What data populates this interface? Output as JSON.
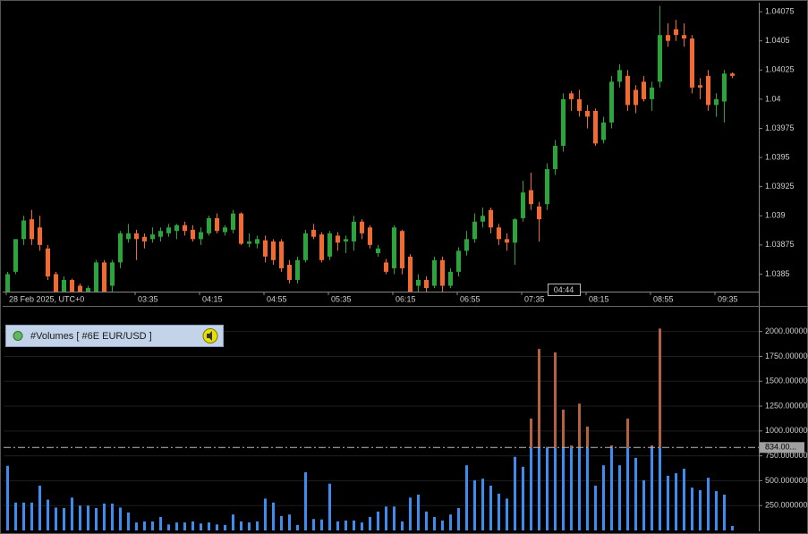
{
  "chart_data": [
    {
      "type": "candlestick",
      "categories": [
        "28 Feb 2025, UTC+0",
        null,
        null,
        null,
        null,
        null,
        null,
        null,
        null,
        null,
        null,
        null,
        null,
        null,
        null,
        null,
        "03:35",
        null,
        null,
        null,
        null,
        null,
        null,
        null,
        "04:15",
        null,
        null,
        null,
        null,
        null,
        null,
        null,
        "04:55",
        null,
        null,
        null,
        null,
        null,
        null,
        null,
        "05:35",
        null,
        null,
        null,
        null,
        null,
        null,
        null,
        "06:15",
        null,
        null,
        null,
        null,
        null,
        null,
        null,
        "06:55",
        null,
        null,
        null,
        null,
        null,
        null,
        null,
        "07:35",
        null,
        null,
        null,
        null,
        null,
        null,
        null,
        "08:15",
        null,
        null,
        null,
        null,
        null,
        null,
        null,
        "08:55",
        null,
        null,
        null,
        null,
        null,
        null,
        null,
        "09:35",
        null,
        null
      ],
      "open": [
        1.03833,
        1.03852,
        1.0388,
        1.03897,
        1.0389,
        1.03872,
        1.0385,
        1.03832,
        1.03845,
        1.0384,
        1.03833,
        1.03835,
        1.0386,
        1.0384,
        1.0386,
        1.0388,
        1.03885,
        1.03882,
        1.0388,
        1.03882,
        1.03885,
        1.03887,
        1.03892,
        1.03888,
        1.0388,
        1.03885,
        1.03898,
        1.03886,
        1.03888,
        1.03902,
        1.03876,
        1.03876,
        1.03879,
        1.03878,
        1.03878,
        1.03858,
        1.03845,
        1.03862,
        1.03888,
        1.03884,
        1.03865,
        1.03883,
        1.03878,
        1.03878,
        1.03895,
        1.0389,
        1.03868,
        1.0386,
        1.03855,
        1.03887,
        1.03865,
        1.0384,
        1.03845,
        1.0384,
        1.03862,
        1.0384,
        1.03852,
        1.0387,
        1.0388,
        1.03895,
        1.03905,
        1.0389,
        1.0388,
        1.03877,
        1.03898,
        1.03922,
        1.03908,
        1.0391,
        1.0394,
        1.0396,
        1.04005,
        1.04,
        1.0399,
        1.0399,
        1.03965,
        1.0398,
        1.04015,
        1.0402,
        1.04008,
        1.04015,
        1.04,
        1.04015,
        1.04055,
        1.0406,
        1.04055,
        1.04052,
        1.04012,
        1.0402,
        1.03995,
        1.03998,
        1.04022
      ],
      "high": [
        1.03852,
        1.0388,
        1.039,
        1.03905,
        1.039,
        1.03875,
        1.03852,
        1.03848,
        1.03846,
        1.03842,
        1.0384,
        1.03862,
        1.03862,
        1.03862,
        1.03887,
        1.03893,
        1.03888,
        1.03885,
        1.0389,
        1.0389,
        1.03893,
        1.03893,
        1.03895,
        1.03892,
        1.0389,
        1.039,
        1.03902,
        1.03892,
        1.03905,
        1.03903,
        1.03885,
        1.03883,
        1.03883,
        1.0388,
        1.0388,
        1.03862,
        1.03865,
        1.03888,
        1.03893,
        1.03886,
        1.03887,
        1.03886,
        1.03883,
        1.039,
        1.03897,
        1.03892,
        1.03875,
        1.03863,
        1.03892,
        1.03888,
        1.03867,
        1.0385,
        1.03848,
        1.03865,
        1.03865,
        1.03855,
        1.03873,
        1.03887,
        1.03902,
        1.03907,
        1.03907,
        1.03893,
        1.03885,
        1.03898,
        1.0393,
        1.03937,
        1.03912,
        1.03945,
        1.03965,
        1.04005,
        1.04007,
        1.04008,
        1.03995,
        1.03992,
        1.03985,
        1.0402,
        1.0403,
        1.04025,
        1.04012,
        1.0402,
        1.04015,
        1.0408,
        1.04065,
        1.04068,
        1.04065,
        1.04055,
        1.04018,
        1.04025,
        1.04005,
        1.04025,
        1.04023
      ],
      "low": [
        1.0383,
        1.0385,
        1.03875,
        1.03875,
        1.0387,
        1.03845,
        1.03825,
        1.0383,
        1.03828,
        1.03828,
        1.03828,
        1.03832,
        1.03832,
        1.03835,
        1.03855,
        1.03877,
        1.03862,
        1.03872,
        1.03877,
        1.03878,
        1.03882,
        1.0388,
        1.03883,
        1.03878,
        1.03875,
        1.03883,
        1.03885,
        1.03883,
        1.03885,
        1.03875,
        1.03873,
        1.03872,
        1.0386,
        1.03858,
        1.03852,
        1.03842,
        1.03842,
        1.0386,
        1.0388,
        1.0386,
        1.03862,
        1.0387,
        1.03868,
        1.0387,
        1.0388,
        1.03872,
        1.03865,
        1.0385,
        1.0385,
        1.0385,
        1.03825,
        1.0383,
        1.03832,
        1.03838,
        1.03835,
        1.03838,
        1.03848,
        1.03866,
        1.03877,
        1.0389,
        1.03885,
        1.03875,
        1.0387,
        1.03858,
        1.03895,
        1.03905,
        1.03878,
        1.03905,
        1.03935,
        1.03955,
        1.0399,
        1.03985,
        1.03975,
        1.0396,
        1.03962,
        1.03975,
        1.0401,
        1.0399,
        1.03988,
        1.03998,
        1.0399,
        1.0401,
        1.04045,
        1.0405,
        1.04045,
        1.04005,
        1.04,
        1.0399,
        1.03985,
        1.0398,
        1.04018
      ],
      "close": [
        1.0385,
        1.0388,
        1.03896,
        1.0388,
        1.03875,
        1.03848,
        1.0383,
        1.03845,
        1.03833,
        1.0383,
        1.03838,
        1.0386,
        1.03835,
        1.0386,
        1.03885,
        1.03885,
        1.0388,
        1.03878,
        1.03884,
        1.03887,
        1.0389,
        1.03892,
        1.03887,
        1.0388,
        1.03886,
        1.03898,
        1.03887,
        1.0389,
        1.03902,
        1.03876,
        1.03878,
        1.0388,
        1.03865,
        1.03862,
        1.03855,
        1.03845,
        1.03862,
        1.03885,
        1.03882,
        1.03862,
        1.03885,
        1.03877,
        1.0388,
        1.03895,
        1.03885,
        1.03875,
        1.03872,
        1.03852,
        1.0389,
        1.03855,
        1.0383,
        1.03845,
        1.03838,
        1.03862,
        1.0384,
        1.03852,
        1.0387,
        1.0388,
        1.03895,
        1.039,
        1.0389,
        1.0388,
        1.03877,
        1.03897,
        1.0392,
        1.0391,
        1.03897,
        1.0394,
        1.0396,
        1.04,
        1.04,
        1.0399,
        1.03985,
        1.03962,
        1.0398,
        1.04015,
        1.04025,
        1.03995,
        1.03995,
        1.04,
        1.0401,
        1.04055,
        1.0405,
        1.04055,
        1.04052,
        1.0401,
        1.0401,
        1.03995,
        1.04,
        1.04022,
        1.0402
      ],
      "up_color": "#2aa53c",
      "down_color": "#f26a30",
      "ylim": [
        1.03835,
        1.04082
      ],
      "yticks": [
        1.0385,
        1.03875,
        1.039,
        1.03925,
        1.0395,
        1.03975,
        1.04,
        1.04025,
        1.0405,
        1.04075
      ],
      "crosshair_label": "04:44"
    },
    {
      "type": "bar",
      "title": "#Volumes [ #6E EUR/USD ]",
      "values": [
        650,
        280,
        280,
        280,
        450,
        310,
        230,
        225,
        330,
        250,
        250,
        225,
        270,
        270,
        230,
        180,
        80,
        90,
        90,
        135,
        60,
        80,
        80,
        90,
        70,
        80,
        60,
        55,
        160,
        90,
        80,
        90,
        320,
        280,
        145,
        160,
        55,
        585,
        115,
        110,
        470,
        90,
        100,
        100,
        80,
        135,
        190,
        240,
        240,
        90,
        330,
        360,
        190,
        135,
        100,
        160,
        225,
        655,
        505,
        520,
        450,
        370,
        320,
        740,
        640,
        1125,
        1825,
        840,
        1790,
        1215,
        855,
        1275,
        1045,
        450,
        655,
        855,
        655,
        1125,
        730,
        505,
        855,
        2030,
        550,
        575,
        620,
        430,
        405,
        530,
        395,
        360,
        45
      ],
      "color": "#3b8ef0",
      "above_level_color": "#b5603f",
      "level": {
        "value": 834,
        "label": "834.00..."
      },
      "ylim": [
        0,
        2240
      ],
      "yticks": [
        {
          "value": 250,
          "label": "250.000000"
        },
        {
          "value": 500,
          "label": "500.000000"
        },
        {
          "value": 750,
          "label": "750.000000"
        },
        {
          "value": 1000,
          "label": "1000.000000"
        },
        {
          "value": 1250,
          "label": "1250.000000"
        },
        {
          "value": 1500,
          "label": "1500.000000"
        },
        {
          "value": 1750,
          "label": "1750.000000"
        },
        {
          "value": 2000,
          "label": "2000.000000"
        }
      ],
      "grid": true
    }
  ]
}
